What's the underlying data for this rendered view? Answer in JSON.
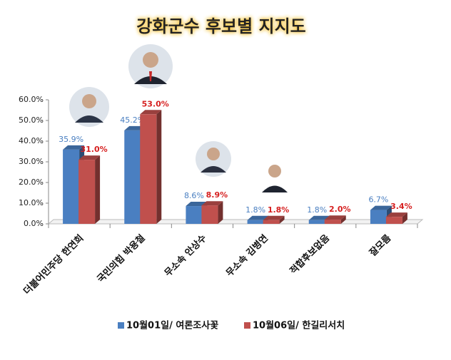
{
  "chart_data": {
    "type": "bar3d",
    "title": "강화군수 후보별 지지도",
    "categories": [
      "더불어민주당 한연희",
      "국민의힘 박용철",
      "무소속 안상수",
      "무소속 김병연",
      "적합후보없음",
      "잘모름"
    ],
    "series": [
      {
        "name": "10월01일/ 여론조사꽃",
        "color": "#4a7fc1",
        "values": [
          35.9,
          45.2,
          8.6,
          1.8,
          1.8,
          6.7
        ],
        "value_labels": [
          "35.9%",
          "45.2%",
          "8.6%",
          "1.8%",
          "1.8%",
          "6.7%"
        ]
      },
      {
        "name": "10월06일/ 한길리서치",
        "color": "#c0504d",
        "values": [
          31.0,
          53.0,
          8.9,
          1.8,
          2.0,
          3.4
        ],
        "value_labels": [
          "31.0%",
          "53.0%",
          "8.9%",
          "1.8%",
          "2.0%",
          "3.4%"
        ]
      }
    ],
    "ylim": [
      0,
      60
    ],
    "yticks": [
      {
        "value": 0,
        "label": "0.0%"
      },
      {
        "value": 10,
        "label": "10.0%"
      },
      {
        "value": 20,
        "label": "20.0%"
      },
      {
        "value": 30,
        "label": "30.0%"
      },
      {
        "value": 40,
        "label": "40.0%"
      },
      {
        "value": 50,
        "label": "50.0%"
      },
      {
        "value": 60,
        "label": "60.0%"
      }
    ]
  }
}
